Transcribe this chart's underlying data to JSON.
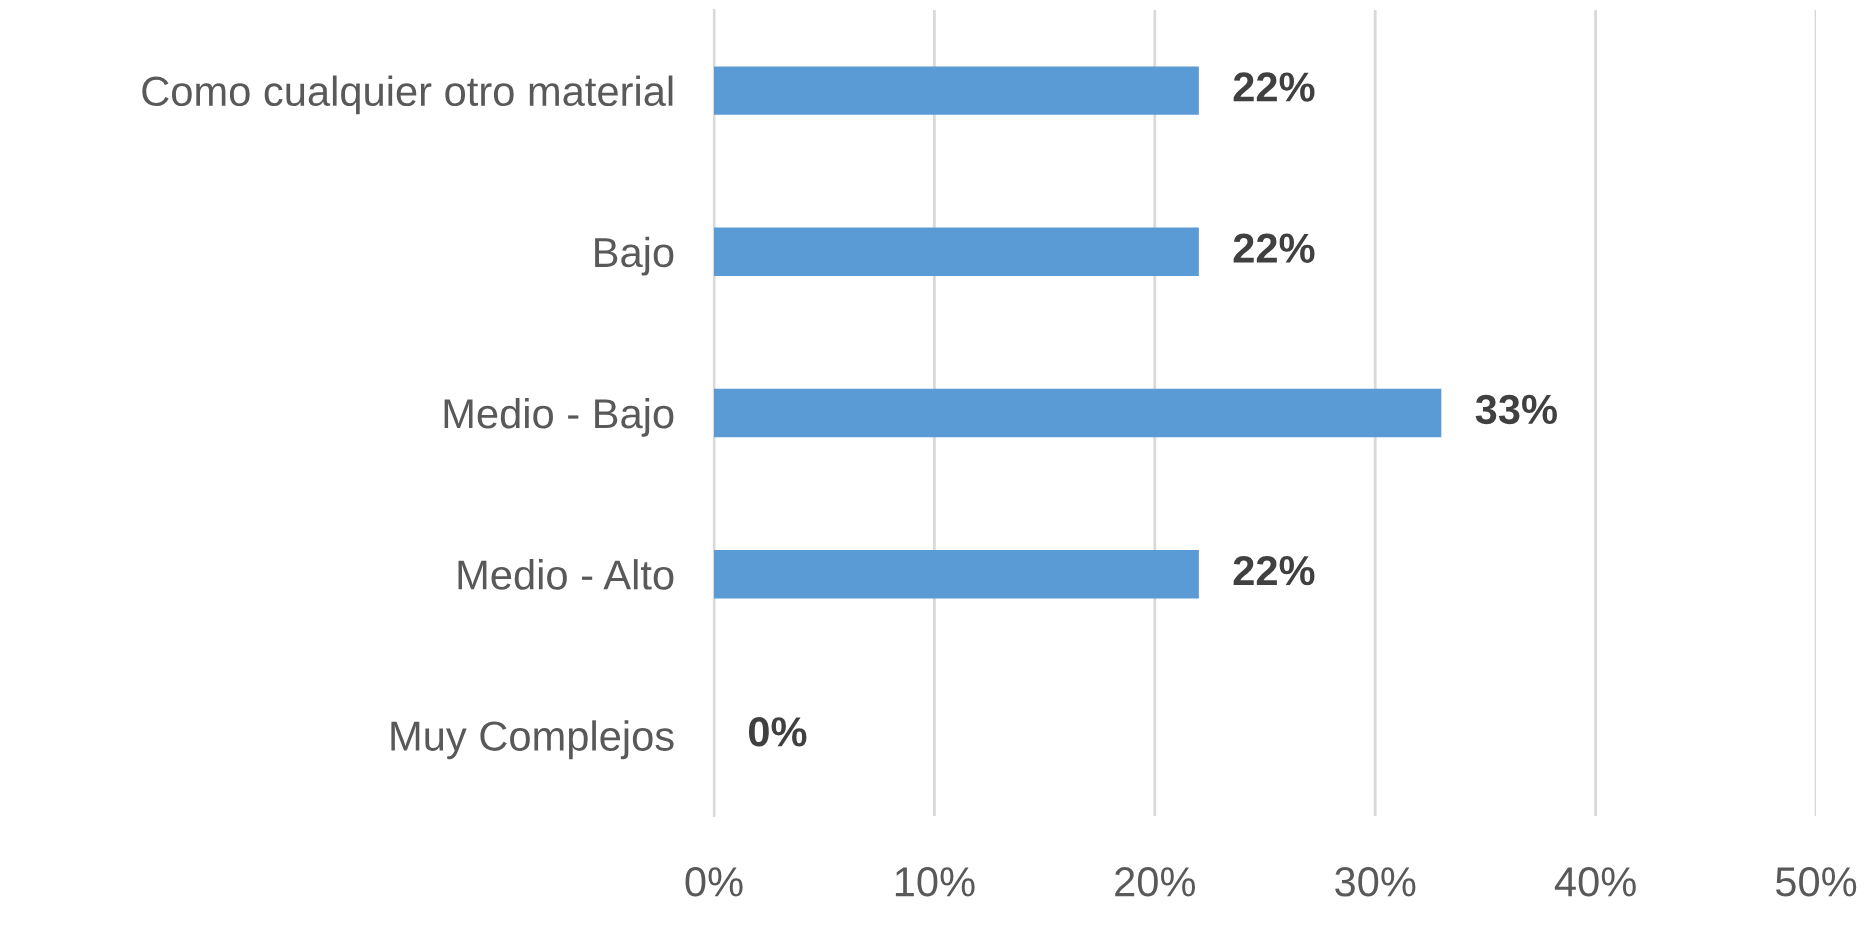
{
  "chart_data": {
    "type": "bar",
    "orientation": "horizontal",
    "categories": [
      "Como cualquier otro material",
      "Bajo",
      "Medio - Bajo",
      "Medio - Alto",
      "Muy Complejos"
    ],
    "values": [
      22,
      22,
      33,
      22,
      0
    ],
    "value_labels": [
      "22%",
      "22%",
      "33%",
      "22%",
      "0%"
    ],
    "color": "#5b9bd5",
    "xlim": [
      0,
      50
    ],
    "xticks": [
      {
        "value": 0,
        "label": "0%"
      },
      {
        "value": 10,
        "label": "10%"
      },
      {
        "value": 20,
        "label": "20%"
      },
      {
        "value": 30,
        "label": "30%"
      },
      {
        "value": 40,
        "label": "40%"
      },
      {
        "value": 50,
        "label": "50%"
      }
    ],
    "grid": "x"
  }
}
